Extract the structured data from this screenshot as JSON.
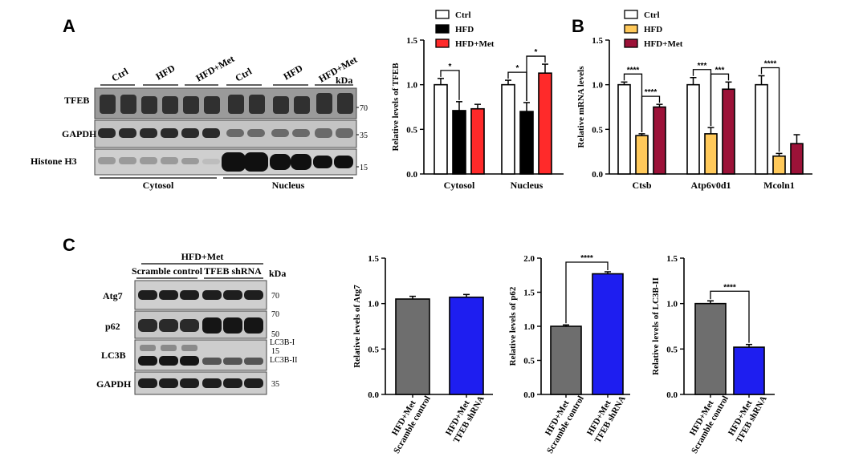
{
  "panels": {
    "A": "A",
    "B": "B",
    "C": "C"
  },
  "blot_a": {
    "groups": [
      "Ctrl",
      "HFD",
      "HFD+Met",
      "Ctrl",
      "HFD",
      "HFD+Met"
    ],
    "kda": "kDa",
    "rows": [
      {
        "label": "TFEB",
        "marker": "70"
      },
      {
        "label": "GAPDH",
        "marker": "35"
      },
      {
        "label": "Histone H3",
        "marker": "15"
      }
    ],
    "fractions": [
      "Cytosol",
      "Nucleus"
    ]
  },
  "blot_c": {
    "top_group": "HFD+Met",
    "groups": [
      "Scramble control",
      "TFEB shRNA"
    ],
    "kda": "kDa",
    "rows": [
      {
        "label": "Atg7",
        "markers": [
          "70"
        ]
      },
      {
        "label": "p62",
        "markers": [
          "70",
          "50"
        ]
      },
      {
        "label": "LC3B",
        "markers": [
          "LC3B-I",
          "15",
          "LC3B-II"
        ]
      },
      {
        "label": "GAPDH",
        "markers": [
          "35"
        ]
      }
    ]
  },
  "chart_data": [
    {
      "id": "A",
      "type": "bar",
      "ylabel": "Relative levels of TFEB",
      "ylim": [
        0,
        1.5
      ],
      "yticks": [
        "0.0",
        "0.5",
        "1.0",
        "1.5"
      ],
      "categories": [
        "Cytosol",
        "Nucleus"
      ],
      "series": [
        {
          "name": "Ctrl",
          "color": "#ffffff",
          "values": [
            1.0,
            1.0
          ],
          "errors": [
            0.07,
            0.05
          ]
        },
        {
          "name": "HFD",
          "color": "#000000",
          "values": [
            0.71,
            0.7
          ],
          "errors": [
            0.1,
            0.1
          ]
        },
        {
          "name": "HFD+Met",
          "color": "#ff2a2a",
          "values": [
            0.73,
            1.13
          ],
          "errors": [
            0.05,
            0.1
          ]
        }
      ],
      "significance": [
        {
          "category": 0,
          "from": 0,
          "to": 1,
          "label": "*"
        },
        {
          "category": 1,
          "from": 0,
          "to": 1,
          "label": "*"
        },
        {
          "category": 1,
          "from": 1,
          "to": 2,
          "label": "*"
        }
      ],
      "legend": "top"
    },
    {
      "id": "B",
      "type": "bar",
      "ylabel": "Relative mRNA levels",
      "ylim": [
        0,
        1.5
      ],
      "yticks": [
        "0.0",
        "0.5",
        "1.0",
        "1.5"
      ],
      "categories": [
        "Ctsb",
        "Atp6v0d1",
        "Mcoln1"
      ],
      "series": [
        {
          "name": "Ctrl",
          "color": "#ffffff",
          "values": [
            1.0,
            1.0,
            1.0
          ],
          "errors": [
            0.03,
            0.08,
            0.1
          ]
        },
        {
          "name": "HFD",
          "color": "#ffc95a",
          "values": [
            0.43,
            0.45,
            0.2
          ],
          "errors": [
            0.02,
            0.07,
            0.03
          ]
        },
        {
          "name": "HFD+Met",
          "color": "#9c1238",
          "values": [
            0.75,
            0.95,
            0.34
          ],
          "errors": [
            0.03,
            0.08,
            0.1
          ]
        }
      ],
      "significance": [
        {
          "category": 0,
          "from": 0,
          "to": 1,
          "label": "****"
        },
        {
          "category": 0,
          "from": 1,
          "to": 2,
          "label": "****"
        },
        {
          "category": 1,
          "from": 0,
          "to": 1,
          "label": "***"
        },
        {
          "category": 1,
          "from": 1,
          "to": 2,
          "label": "***"
        },
        {
          "category": 2,
          "from": 0,
          "to": 1,
          "label": "****"
        }
      ],
      "legend": "top"
    },
    {
      "id": "C1",
      "type": "bar",
      "ylabel": "Relative levels of Atg7",
      "ylim": [
        0,
        1.5
      ],
      "yticks": [
        "0.0",
        "0.5",
        "1.0",
        "1.5"
      ],
      "categories": [
        [
          "HFD+Met",
          "Scramble control"
        ],
        [
          "HFD+Met",
          "TFEB shRNA"
        ]
      ],
      "values": [
        1.05,
        1.07
      ],
      "errors": [
        0.03,
        0.03
      ],
      "colors": [
        "#6e6e6e",
        "#1e1ef0"
      ],
      "significance": []
    },
    {
      "id": "C2",
      "type": "bar",
      "ylabel": "Relative levels of p62",
      "ylim": [
        0,
        2.0
      ],
      "yticks": [
        "0.0",
        "0.5",
        "1.0",
        "1.5",
        "2.0"
      ],
      "categories": [
        [
          "HFD+Met",
          "Scramble control"
        ],
        [
          "HFD+Met",
          "TFEB shRNA"
        ]
      ],
      "values": [
        1.0,
        1.77
      ],
      "errors": [
        0.02,
        0.03
      ],
      "colors": [
        "#6e6e6e",
        "#1e1ef0"
      ],
      "significance": [
        {
          "from": 0,
          "to": 1,
          "label": "****"
        }
      ]
    },
    {
      "id": "C3",
      "type": "bar",
      "ylabel": "Relative levels of LC3B-II",
      "ylim": [
        0,
        1.5
      ],
      "yticks": [
        "0.0",
        "0.5",
        "1.0",
        "1.5"
      ],
      "categories": [
        [
          "HFD+Met",
          "Scramble control"
        ],
        [
          "HFD+Met",
          "TFEB shRNA"
        ]
      ],
      "values": [
        1.0,
        0.52
      ],
      "errors": [
        0.03,
        0.03
      ],
      "colors": [
        "#6e6e6e",
        "#1e1ef0"
      ],
      "significance": [
        {
          "from": 0,
          "to": 1,
          "label": "****"
        }
      ]
    }
  ]
}
